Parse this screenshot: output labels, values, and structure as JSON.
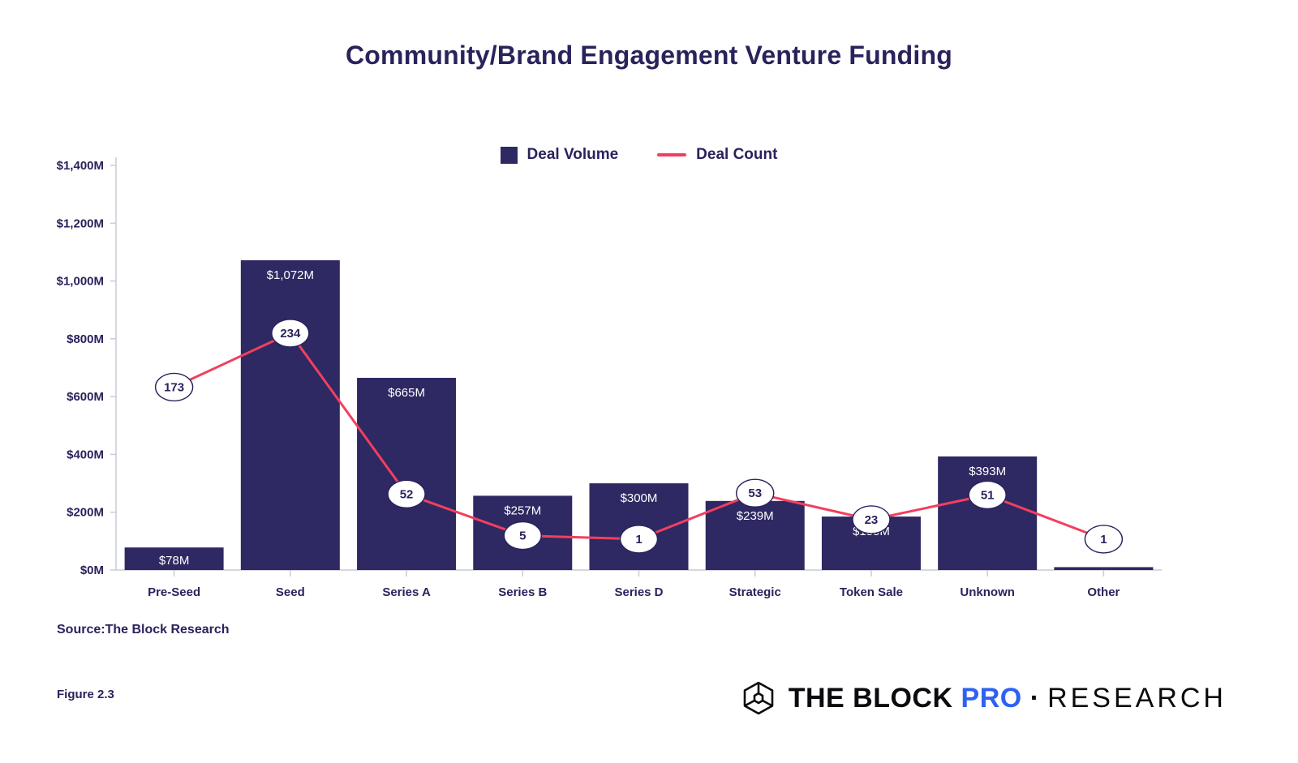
{
  "page": {
    "title": "Community/Brand Engagement Venture Funding",
    "source": "Source:The Block Research",
    "figure_label": "Figure 2.3"
  },
  "legend": {
    "deal_volume": "Deal Volume",
    "deal_count": "Deal Count"
  },
  "logo": {
    "the_block": "THE BLOCK",
    "pro": "PRO",
    "separator": "·",
    "research": "RESEARCH"
  },
  "colors": {
    "bar": "#2E2962",
    "line": "#F23F5E",
    "navy_text": "#29235C",
    "axis": "#C9CBD6",
    "bar_label": "#FFFFFF",
    "pro_blue": "#2E62F0",
    "marker_fill": "#FFFFFF"
  },
  "chart_data": {
    "type": "bar",
    "title": "Community/Brand Engagement Venture Funding",
    "categories": [
      "Pre-Seed",
      "Seed",
      "Series A",
      "Series B",
      "Series D",
      "Strategic",
      "Token Sale",
      "Unknown",
      "Other"
    ],
    "series": [
      {
        "name": "Deal Volume",
        "type": "bar",
        "unit": "$M",
        "values": [
          78,
          1072,
          665,
          257,
          300,
          239,
          185,
          393,
          10
        ],
        "labels": [
          "$78M",
          "$1,072M",
          "$665M",
          "$257M",
          "$300M",
          "$239M",
          "$185M",
          "$393M",
          ""
        ]
      },
      {
        "name": "Deal Count",
        "type": "line",
        "values": [
          173,
          234,
          52,
          5,
          1,
          53,
          23,
          51,
          1
        ]
      }
    ],
    "y_axis": {
      "ticks": [
        "$0M",
        "$200M",
        "$400M",
        "$600M",
        "$800M",
        "$1,000M",
        "$1,200M",
        "$1,400M"
      ],
      "min": 0,
      "max": 1400,
      "step": 200
    },
    "xlabel": "",
    "ylabel": "",
    "grid": false,
    "legend_position": "top-center"
  }
}
